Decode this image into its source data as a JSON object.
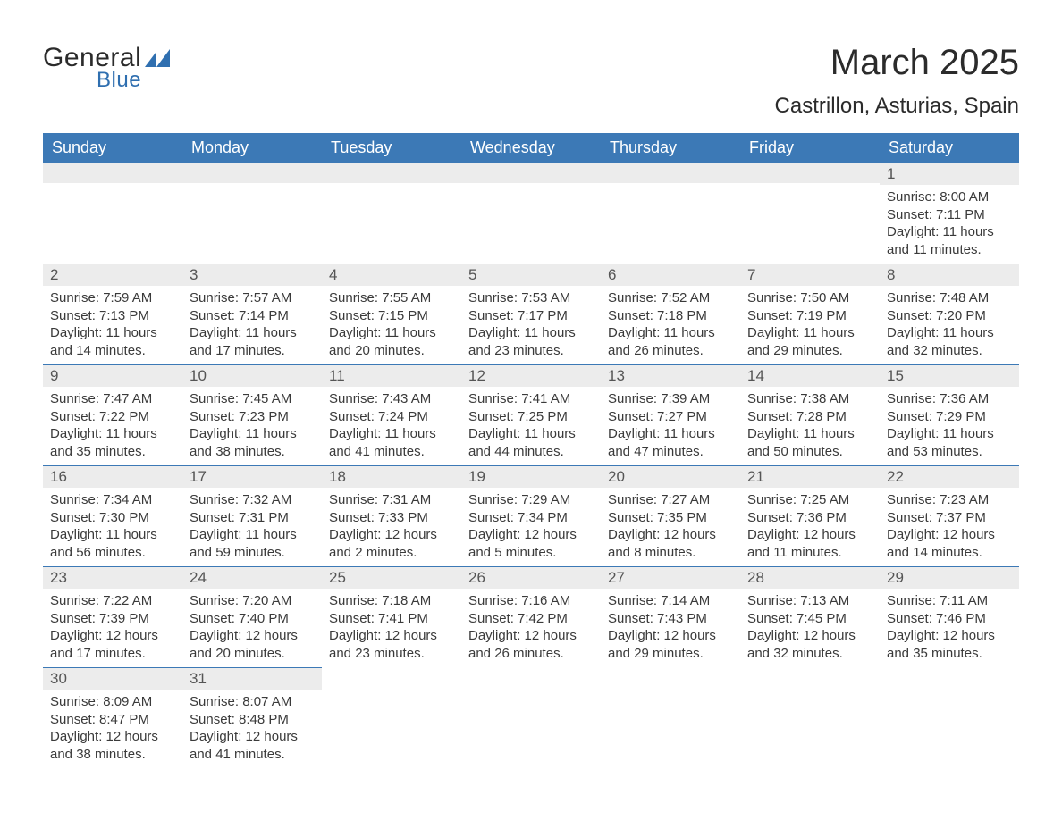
{
  "brand": {
    "name1": "General",
    "name2": "Blue"
  },
  "title": {
    "month": "March 2025",
    "location": "Castrillon, Asturias, Spain"
  },
  "colors": {
    "header_bg": "#3c79b6",
    "header_text": "#ffffff",
    "daynum_bg": "#ececec",
    "row_border": "#3c79b6",
    "text": "#3a3a3a",
    "logo_blue": "#2f6fb0"
  },
  "typography": {
    "month_title_pt": 40,
    "location_pt": 24,
    "day_header_pt": 18,
    "daynum_pt": 17,
    "body_pt": 15
  },
  "day_headers": [
    "Sunday",
    "Monday",
    "Tuesday",
    "Wednesday",
    "Thursday",
    "Friday",
    "Saturday"
  ],
  "weeks": [
    [
      null,
      null,
      null,
      null,
      null,
      null,
      {
        "n": "1",
        "sunrise": "Sunrise: 8:00 AM",
        "sunset": "Sunset: 7:11 PM",
        "daylight": "Daylight: 11 hours and 11 minutes."
      }
    ],
    [
      {
        "n": "2",
        "sunrise": "Sunrise: 7:59 AM",
        "sunset": "Sunset: 7:13 PM",
        "daylight": "Daylight: 11 hours and 14 minutes."
      },
      {
        "n": "3",
        "sunrise": "Sunrise: 7:57 AM",
        "sunset": "Sunset: 7:14 PM",
        "daylight": "Daylight: 11 hours and 17 minutes."
      },
      {
        "n": "4",
        "sunrise": "Sunrise: 7:55 AM",
        "sunset": "Sunset: 7:15 PM",
        "daylight": "Daylight: 11 hours and 20 minutes."
      },
      {
        "n": "5",
        "sunrise": "Sunrise: 7:53 AM",
        "sunset": "Sunset: 7:17 PM",
        "daylight": "Daylight: 11 hours and 23 minutes."
      },
      {
        "n": "6",
        "sunrise": "Sunrise: 7:52 AM",
        "sunset": "Sunset: 7:18 PM",
        "daylight": "Daylight: 11 hours and 26 minutes."
      },
      {
        "n": "7",
        "sunrise": "Sunrise: 7:50 AM",
        "sunset": "Sunset: 7:19 PM",
        "daylight": "Daylight: 11 hours and 29 minutes."
      },
      {
        "n": "8",
        "sunrise": "Sunrise: 7:48 AM",
        "sunset": "Sunset: 7:20 PM",
        "daylight": "Daylight: 11 hours and 32 minutes."
      }
    ],
    [
      {
        "n": "9",
        "sunrise": "Sunrise: 7:47 AM",
        "sunset": "Sunset: 7:22 PM",
        "daylight": "Daylight: 11 hours and 35 minutes."
      },
      {
        "n": "10",
        "sunrise": "Sunrise: 7:45 AM",
        "sunset": "Sunset: 7:23 PM",
        "daylight": "Daylight: 11 hours and 38 minutes."
      },
      {
        "n": "11",
        "sunrise": "Sunrise: 7:43 AM",
        "sunset": "Sunset: 7:24 PM",
        "daylight": "Daylight: 11 hours and 41 minutes."
      },
      {
        "n": "12",
        "sunrise": "Sunrise: 7:41 AM",
        "sunset": "Sunset: 7:25 PM",
        "daylight": "Daylight: 11 hours and 44 minutes."
      },
      {
        "n": "13",
        "sunrise": "Sunrise: 7:39 AM",
        "sunset": "Sunset: 7:27 PM",
        "daylight": "Daylight: 11 hours and 47 minutes."
      },
      {
        "n": "14",
        "sunrise": "Sunrise: 7:38 AM",
        "sunset": "Sunset: 7:28 PM",
        "daylight": "Daylight: 11 hours and 50 minutes."
      },
      {
        "n": "15",
        "sunrise": "Sunrise: 7:36 AM",
        "sunset": "Sunset: 7:29 PM",
        "daylight": "Daylight: 11 hours and 53 minutes."
      }
    ],
    [
      {
        "n": "16",
        "sunrise": "Sunrise: 7:34 AM",
        "sunset": "Sunset: 7:30 PM",
        "daylight": "Daylight: 11 hours and 56 minutes."
      },
      {
        "n": "17",
        "sunrise": "Sunrise: 7:32 AM",
        "sunset": "Sunset: 7:31 PM",
        "daylight": "Daylight: 11 hours and 59 minutes."
      },
      {
        "n": "18",
        "sunrise": "Sunrise: 7:31 AM",
        "sunset": "Sunset: 7:33 PM",
        "daylight": "Daylight: 12 hours and 2 minutes."
      },
      {
        "n": "19",
        "sunrise": "Sunrise: 7:29 AM",
        "sunset": "Sunset: 7:34 PM",
        "daylight": "Daylight: 12 hours and 5 minutes."
      },
      {
        "n": "20",
        "sunrise": "Sunrise: 7:27 AM",
        "sunset": "Sunset: 7:35 PM",
        "daylight": "Daylight: 12 hours and 8 minutes."
      },
      {
        "n": "21",
        "sunrise": "Sunrise: 7:25 AM",
        "sunset": "Sunset: 7:36 PM",
        "daylight": "Daylight: 12 hours and 11 minutes."
      },
      {
        "n": "22",
        "sunrise": "Sunrise: 7:23 AM",
        "sunset": "Sunset: 7:37 PM",
        "daylight": "Daylight: 12 hours and 14 minutes."
      }
    ],
    [
      {
        "n": "23",
        "sunrise": "Sunrise: 7:22 AM",
        "sunset": "Sunset: 7:39 PM",
        "daylight": "Daylight: 12 hours and 17 minutes."
      },
      {
        "n": "24",
        "sunrise": "Sunrise: 7:20 AM",
        "sunset": "Sunset: 7:40 PM",
        "daylight": "Daylight: 12 hours and 20 minutes."
      },
      {
        "n": "25",
        "sunrise": "Sunrise: 7:18 AM",
        "sunset": "Sunset: 7:41 PM",
        "daylight": "Daylight: 12 hours and 23 minutes."
      },
      {
        "n": "26",
        "sunrise": "Sunrise: 7:16 AM",
        "sunset": "Sunset: 7:42 PM",
        "daylight": "Daylight: 12 hours and 26 minutes."
      },
      {
        "n": "27",
        "sunrise": "Sunrise: 7:14 AM",
        "sunset": "Sunset: 7:43 PM",
        "daylight": "Daylight: 12 hours and 29 minutes."
      },
      {
        "n": "28",
        "sunrise": "Sunrise: 7:13 AM",
        "sunset": "Sunset: 7:45 PM",
        "daylight": "Daylight: 12 hours and 32 minutes."
      },
      {
        "n": "29",
        "sunrise": "Sunrise: 7:11 AM",
        "sunset": "Sunset: 7:46 PM",
        "daylight": "Daylight: 12 hours and 35 minutes."
      }
    ],
    [
      {
        "n": "30",
        "sunrise": "Sunrise: 8:09 AM",
        "sunset": "Sunset: 8:47 PM",
        "daylight": "Daylight: 12 hours and 38 minutes."
      },
      {
        "n": "31",
        "sunrise": "Sunrise: 8:07 AM",
        "sunset": "Sunset: 8:48 PM",
        "daylight": "Daylight: 12 hours and 41 minutes."
      },
      null,
      null,
      null,
      null,
      null
    ]
  ]
}
